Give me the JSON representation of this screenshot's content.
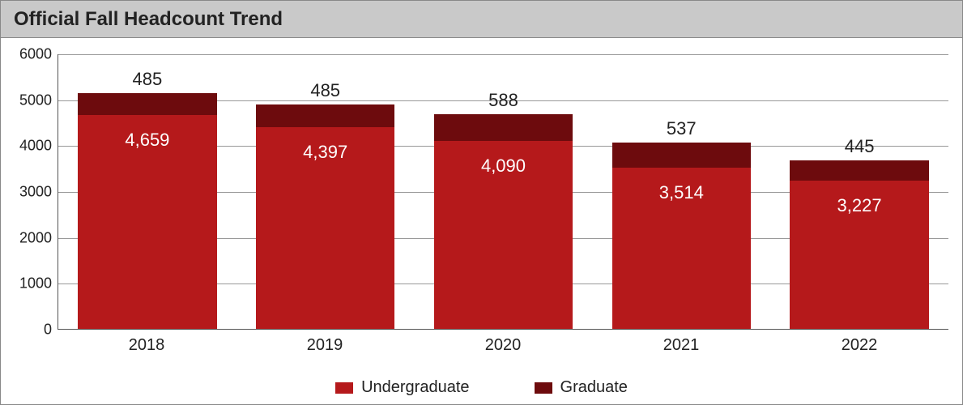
{
  "title": "Official Fall Headcount Trend",
  "chart": {
    "type": "stacked-bar",
    "categories": [
      "2018",
      "2019",
      "2020",
      "2021",
      "2022"
    ],
    "series": [
      {
        "name": "Undergraduate",
        "color": "#b5191b",
        "values": [
          4659,
          4397,
          4090,
          3514,
          3227
        ],
        "labels": [
          "4,659",
          "4,397",
          "4,090",
          "3,514",
          "3,227"
        ],
        "label_color": "#ffffff",
        "label_fontsize": 22
      },
      {
        "name": "Graduate",
        "color": "#6d0b0d",
        "values": [
          485,
          485,
          588,
          537,
          445
        ],
        "labels": [
          "485",
          "485",
          "588",
          "537",
          "445"
        ],
        "label_color": "#222222",
        "label_fontsize": 22
      }
    ],
    "ylim": [
      0,
      6000
    ],
    "ytick_step": 1000,
    "ytick_labels": [
      "0",
      "1000",
      "2000",
      "3000",
      "4000",
      "5000",
      "6000"
    ],
    "grid_color": "#999999",
    "axis_color": "#555555",
    "background_color": "#ffffff",
    "bar_width_ratio": 0.78,
    "title_background": "#c9c9c9",
    "title_fontsize": 24,
    "title_font_weight": 800,
    "xaxis_fontsize": 20,
    "yaxis_fontsize": 18,
    "legend_fontsize": 20
  },
  "legend": {
    "items": [
      {
        "label": "Undergraduate",
        "color": "#b5191b"
      },
      {
        "label": "Graduate",
        "color": "#6d0b0d"
      }
    ]
  }
}
